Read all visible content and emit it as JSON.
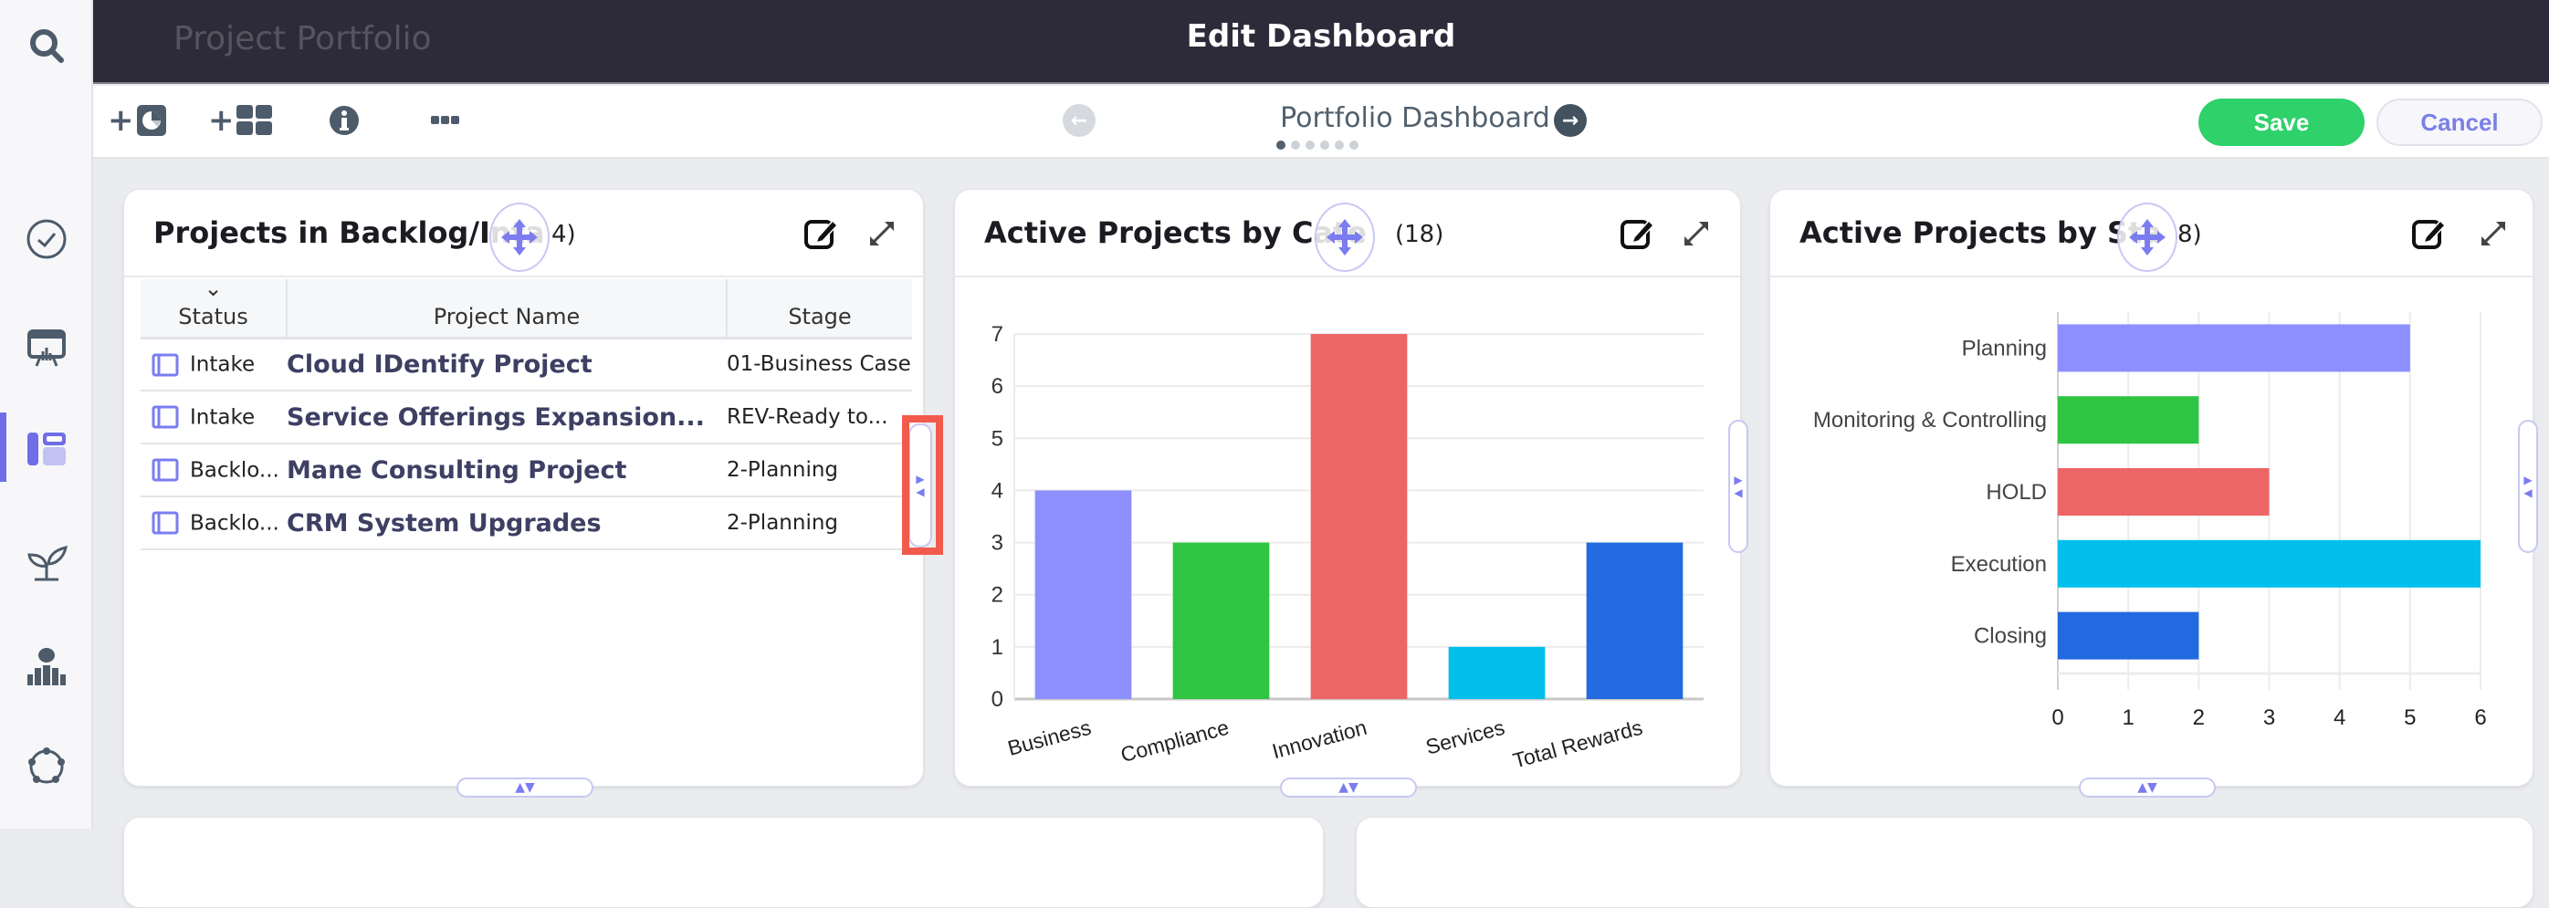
{
  "header": {
    "app_title": "Project Portfolio",
    "page_title": "Edit Dashboard"
  },
  "sidebar": {
    "items": [
      {
        "name": "search",
        "icon": "search-icon",
        "active": false
      },
      {
        "name": "tasks",
        "icon": "check-circle-icon",
        "active": false
      },
      {
        "name": "presentation",
        "icon": "presentation-board-icon",
        "active": false
      },
      {
        "name": "dashboards",
        "icon": "dashboard-layout-icon",
        "active": true
      },
      {
        "name": "growth",
        "icon": "sprout-icon",
        "active": false
      },
      {
        "name": "resources",
        "icon": "people-chart-icon",
        "active": false
      },
      {
        "name": "network",
        "icon": "network-circle-icon",
        "active": false
      }
    ],
    "accent_color": "#6f6ee8"
  },
  "toolbar": {
    "add_widget_label": "+",
    "add_layout_label": "+",
    "dashboard_name": "Portfolio Dashboard",
    "page_dots": 6,
    "active_page": 1,
    "save_label": "Save",
    "cancel_label": "Cancel"
  },
  "cards": [
    {
      "title": "Projects in Backlog/Intake",
      "title_visible": "Projects in Backlog/Inta",
      "count": "(4)",
      "count_visible": "4)",
      "table": {
        "sort_indicator": "⌄",
        "columns": [
          "Status",
          "Project Name",
          "Stage"
        ],
        "rows": [
          {
            "status": "Intake",
            "name": "Cloud IDentify Project",
            "stage": "01-Business Case"
          },
          {
            "status": "Intake",
            "name": "Service Offerings Expansion...",
            "stage": "REV-Ready to..."
          },
          {
            "status": "Backlo...",
            "name": "Mane Consulting Project",
            "stage": "2-Planning"
          },
          {
            "status": "Backlo...",
            "name": "CRM System Upgrades",
            "stage": "2-Planning"
          }
        ]
      }
    },
    {
      "title": "Active Projects by Category",
      "title_visible": "Active Projects by Cate",
      "count": "(18)"
    },
    {
      "title": "Active Projects by Stage",
      "title_visible": "Active Projects by Sta",
      "count": "(18)",
      "count_visible": "8)"
    }
  ],
  "chart_data": [
    {
      "type": "bar",
      "title": "Active Projects by Category (18)",
      "categories": [
        "Business",
        "Compliance",
        "Innovation",
        "Services",
        "Total Rewards"
      ],
      "values": [
        4,
        3,
        7,
        1,
        3
      ],
      "colors": [
        "#8c8ffd",
        "#2fc442",
        "#ec6667",
        "#03bfec",
        "#226adf"
      ],
      "xlabel": "",
      "ylabel": "",
      "ylim": [
        0,
        7
      ],
      "yticks": [
        0,
        1,
        2,
        3,
        4,
        5,
        6,
        7
      ],
      "grid": true,
      "orientation": "vertical"
    },
    {
      "type": "bar",
      "title": "Active Projects by Stage (18)",
      "categories": [
        "Planning",
        "Monitoring & Controlling",
        "HOLD",
        "Execution",
        "Closing"
      ],
      "values": [
        5,
        2,
        3,
        6,
        2
      ],
      "colors": [
        "#8c8ffd",
        "#2fc442",
        "#ec6667",
        "#03bfec",
        "#226adf"
      ],
      "xlabel": "",
      "ylabel": "",
      "xlim": [
        0,
        6
      ],
      "xticks": [
        0,
        1,
        2,
        3,
        4,
        5,
        6
      ],
      "grid": true,
      "orientation": "horizontal"
    }
  ]
}
